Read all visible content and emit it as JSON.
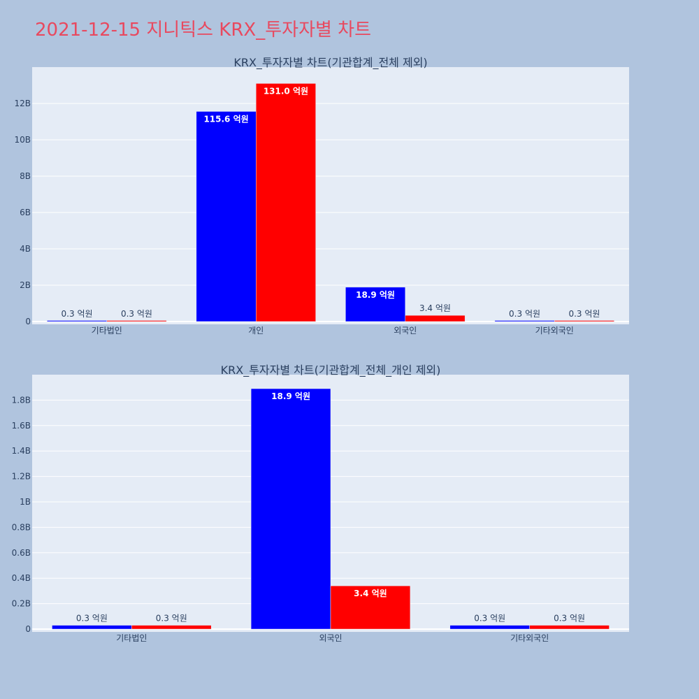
{
  "page": {
    "title": "2021-12-15 지니틱스 KRX_투자자별 차트"
  },
  "colors": {
    "buy": "#0000ff",
    "sell": "#ff0000",
    "plot_bg": "#e5ecf6",
    "page_bg": "#b0c4de",
    "title": "#e8495f"
  },
  "chart_data": [
    {
      "type": "bar",
      "title": "KRX_투자자별 차트(기관합계_전체 제외)",
      "categories": [
        "기타법인",
        "개인",
        "외국인",
        "기타외국인"
      ],
      "ylim": [
        0,
        14
      ],
      "yticks": [
        0,
        2,
        4,
        6,
        8,
        10,
        12
      ],
      "ytick_labels": [
        "0",
        "2B",
        "4B",
        "6B",
        "8B",
        "10B",
        "12B"
      ],
      "grid": true,
      "series": [
        {
          "values": [
            0.03,
            11.56,
            1.89,
            0.03
          ],
          "labels": [
            "0.3 억원",
            "115.6 억원",
            "18.9 억원",
            "0.3 억원"
          ]
        },
        {
          "values": [
            0.03,
            13.1,
            0.34,
            0.03
          ],
          "labels": [
            "0.3 억원",
            "131.0 억원",
            "3.4 억원",
            "0.3 억원"
          ]
        }
      ]
    },
    {
      "type": "bar",
      "title": "KRX_투자자별 차트(기관합계_전체_개인 제외)",
      "categories": [
        "기타법인",
        "외국인",
        "기타외국인"
      ],
      "ylim": [
        0,
        2.0
      ],
      "yticks": [
        0,
        0.2,
        0.4,
        0.6,
        0.8,
        1.0,
        1.2,
        1.4,
        1.6,
        1.8
      ],
      "ytick_labels": [
        "0",
        "0.2B",
        "0.4B",
        "0.6B",
        "0.8B",
        "1B",
        "1.2B",
        "1.4B",
        "1.6B",
        "1.8B"
      ],
      "grid": true,
      "series": [
        {
          "values": [
            0.03,
            1.89,
            0.03
          ],
          "labels": [
            "0.3 억원",
            "18.9 억원",
            "0.3 억원"
          ]
        },
        {
          "values": [
            0.03,
            0.34,
            0.03
          ],
          "labels": [
            "0.3 억원",
            "3.4 억원",
            "0.3 억원"
          ]
        }
      ]
    }
  ]
}
